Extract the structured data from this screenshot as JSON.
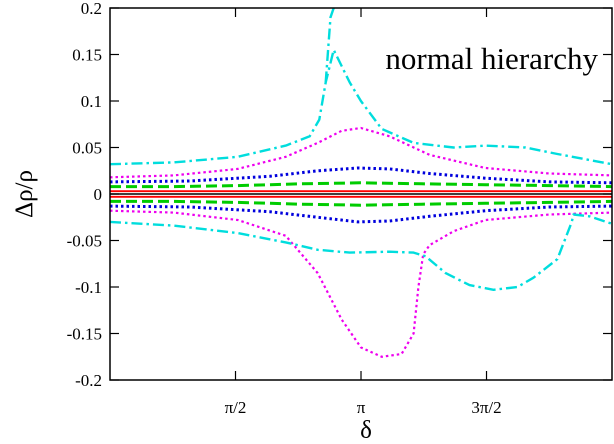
{
  "chart_data": {
    "type": "line",
    "title": "",
    "xlabel": "δ",
    "ylabel": "Δρ/ρ",
    "annotation": "normal hierarchy",
    "xlim": [
      0,
      6.283
    ],
    "ylim": [
      -0.2,
      0.2
    ],
    "x_ticks": [
      {
        "value": 1.5708,
        "label": "π/2"
      },
      {
        "value": 3.1416,
        "label": "π"
      },
      {
        "value": 4.7124,
        "label": "3π/2"
      }
    ],
    "y_ticks": [
      {
        "value": 0.2,
        "label": "0.2"
      },
      {
        "value": 0.15,
        "label": "0.15"
      },
      {
        "value": 0.1,
        "label": "0.1"
      },
      {
        "value": 0.05,
        "label": "0.05"
      },
      {
        "value": 0,
        "label": "0"
      },
      {
        "value": -0.05,
        "label": "-0.05"
      },
      {
        "value": -0.1,
        "label": "-0.1"
      },
      {
        "value": -0.15,
        "label": "-0.15"
      },
      {
        "value": -0.2,
        "label": "-0.2"
      }
    ],
    "grid": false,
    "legend": "none",
    "series": [
      {
        "color": "#000000",
        "dash": "solid",
        "width": 1.5,
        "x": [
          0,
          6.283
        ],
        "y": [
          0,
          0
        ]
      },
      {
        "color": "#ff0000",
        "dash": "solid",
        "width": 1.8,
        "x": [
          0,
          6.283
        ],
        "y": [
          0.003,
          0.003
        ]
      },
      {
        "color": "#ff0000",
        "dash": "solid",
        "width": 1.8,
        "x": [
          0,
          6.283
        ],
        "y": [
          -0.003,
          -0.003
        ]
      },
      {
        "color": "#00cc00",
        "dash": "dashed",
        "width": 3,
        "x": [
          0,
          0.8,
          1.6,
          2.4,
          3.14,
          3.9,
          4.7,
          5.5,
          6.283
        ],
        "y": [
          0.008,
          0.008,
          0.009,
          0.011,
          0.012,
          0.011,
          0.01,
          0.009,
          0.008
        ]
      },
      {
        "color": "#00cc00",
        "dash": "dashed",
        "width": 3,
        "x": [
          0,
          0.8,
          1.6,
          2.4,
          3.14,
          3.9,
          4.7,
          5.5,
          6.283
        ],
        "y": [
          -0.008,
          -0.008,
          -0.009,
          -0.011,
          -0.012,
          -0.011,
          -0.01,
          -0.009,
          -0.008
        ]
      },
      {
        "color": "#0000dd",
        "dash": "dotted",
        "width": 3,
        "x": [
          0,
          1.0,
          2.0,
          2.6,
          3.1,
          3.5,
          4.0,
          4.7,
          5.5,
          6.283
        ],
        "y": [
          0.013,
          0.014,
          0.019,
          0.025,
          0.028,
          0.027,
          0.022,
          0.017,
          0.013,
          0.012
        ]
      },
      {
        "color": "#0000dd",
        "dash": "dotted",
        "width": 3,
        "x": [
          0,
          1.0,
          2.0,
          2.6,
          3.1,
          3.5,
          4.0,
          4.7,
          5.5,
          6.283
        ],
        "y": [
          -0.013,
          -0.014,
          -0.019,
          -0.025,
          -0.03,
          -0.029,
          -0.024,
          -0.018,
          -0.014,
          -0.013
        ]
      },
      {
        "color": "#ee00ee",
        "dash": "dotted",
        "width": 2.2,
        "x": [
          0,
          0.8,
          1.6,
          2.2,
          2.6,
          2.9,
          3.14,
          3.5,
          4.0,
          4.7,
          5.5,
          6.283
        ],
        "y": [
          0.018,
          0.02,
          0.027,
          0.04,
          0.055,
          0.068,
          0.071,
          0.062,
          0.042,
          0.028,
          0.022,
          0.02
        ]
      },
      {
        "color": "#ee00ee",
        "dash": "dotted",
        "width": 2.2,
        "x": [
          0,
          0.8,
          1.6,
          2.2,
          2.6,
          2.9,
          3.14,
          3.4,
          3.65,
          3.8,
          3.86,
          3.92,
          4.0,
          4.3,
          4.7,
          5.5,
          6.283
        ],
        "y": [
          -0.018,
          -0.02,
          -0.028,
          -0.045,
          -0.085,
          -0.135,
          -0.165,
          -0.175,
          -0.172,
          -0.15,
          -0.1,
          -0.065,
          -0.055,
          -0.04,
          -0.028,
          -0.022,
          -0.02
        ]
      },
      {
        "color": "#00dddd",
        "dash": "dashdot",
        "width": 2.4,
        "x": [
          0,
          0.8,
          1.6,
          2.2,
          2.5,
          2.62,
          2.7,
          2.8,
          3.0,
          3.14,
          3.4,
          3.8,
          4.3,
          4.7,
          5.2,
          5.6,
          6.283
        ],
        "y": [
          0.032,
          0.034,
          0.04,
          0.052,
          0.062,
          0.08,
          0.12,
          0.155,
          0.12,
          0.1,
          0.07,
          0.055,
          0.05,
          0.052,
          0.05,
          0.043,
          0.032
        ]
      },
      {
        "color": "#00dddd",
        "dash": "dashdot",
        "width": 2.4,
        "x": [
          0,
          0.8,
          1.6,
          2.2,
          2.6,
          3.0,
          3.5,
          3.8,
          3.95,
          4.2,
          4.5,
          4.8,
          5.1,
          5.3,
          5.6,
          5.78,
          5.8,
          6.0,
          6.283
        ],
        "y": [
          -0.03,
          -0.034,
          -0.042,
          -0.052,
          -0.06,
          -0.063,
          -0.062,
          -0.063,
          -0.067,
          -0.085,
          -0.098,
          -0.103,
          -0.1,
          -0.09,
          -0.07,
          -0.03,
          -0.022,
          -0.024,
          -0.032
        ]
      },
      {
        "color": "#00dddd",
        "dash": "dashdot",
        "width": 2.4,
        "x": [
          2.7,
          2.76,
          2.8
        ],
        "y": [
          0.12,
          0.19,
          0.2
        ]
      }
    ]
  }
}
